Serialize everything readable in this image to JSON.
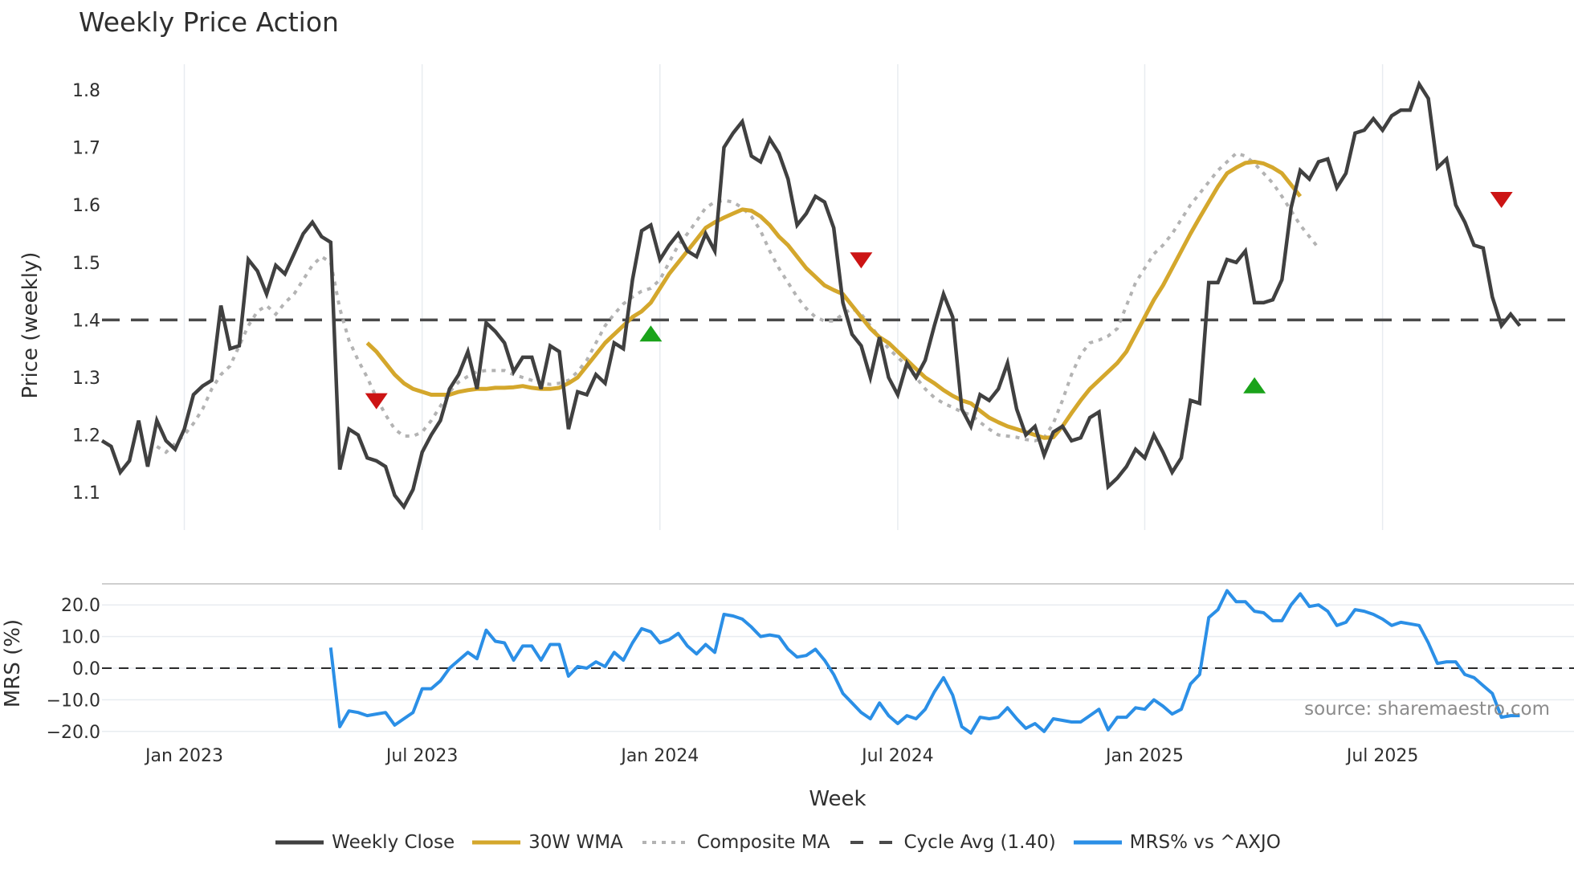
{
  "title": "Weekly Price Action",
  "source": "source: sharemaestro.com",
  "colors": {
    "weekly_close": "#404040",
    "wma": "#d4a72c",
    "composite": "#b3b3b3",
    "cycle_avg": "#4a4a4a",
    "mrs": "#2b8fe6",
    "buy": "#1aa31a",
    "sell": "#cc1414",
    "grid": "#e8ecf0"
  },
  "legend": [
    {
      "key": "weekly_close",
      "label": "Weekly Close",
      "style": "solid"
    },
    {
      "key": "wma",
      "label": "30W WMA",
      "style": "solid"
    },
    {
      "key": "composite",
      "label": "Composite MA",
      "style": "dotted"
    },
    {
      "key": "cycle_avg",
      "label": "Cycle Avg (1.40)",
      "style": "dashed"
    },
    {
      "key": "mrs",
      "label": "MRS% vs ^AXJO",
      "style": "solid"
    }
  ],
  "chart_data": [
    {
      "type": "line",
      "title": "Weekly Price Action",
      "xlabel": "",
      "ylabel": "Price (weekly)",
      "ylim": [
        1.03,
        1.85
      ],
      "yticks": [
        1.1,
        1.2,
        1.3,
        1.4,
        1.5,
        1.6,
        1.7,
        1.8
      ],
      "x_tick_labels": [
        "Jan 2023",
        "Jul 2023",
        "Jan 2024",
        "Jul 2024",
        "Jan 2025",
        "Jul 2025"
      ],
      "grid": "vertical",
      "reference_line": {
        "label": "Cycle Avg (1.40)",
        "value": 1.4
      },
      "series": [
        {
          "name": "Weekly Close",
          "start_week": "2022-10-31",
          "values": [
            1.19,
            1.18,
            1.135,
            1.155,
            1.225,
            1.145,
            1.225,
            1.19,
            1.175,
            1.21,
            1.27,
            1.285,
            1.295,
            1.425,
            1.35,
            1.355,
            1.505,
            1.485,
            1.445,
            1.495,
            1.48,
            1.515,
            1.55,
            1.57,
            1.545,
            1.535,
            1.14,
            1.21,
            1.2,
            1.16,
            1.155,
            1.145,
            1.095,
            1.075,
            1.105,
            1.17,
            1.2,
            1.225,
            1.28,
            1.305,
            1.345,
            1.28,
            1.395,
            1.38,
            1.36,
            1.31,
            1.335,
            1.335,
            1.28,
            1.355,
            1.345,
            1.21,
            1.275,
            1.27,
            1.305,
            1.29,
            1.36,
            1.35,
            1.47,
            1.555,
            1.565,
            1.505,
            1.53,
            1.55,
            1.52,
            1.51,
            1.55,
            1.52,
            1.7,
            1.725,
            1.745,
            1.685,
            1.675,
            1.715,
            1.69,
            1.645,
            1.565,
            1.585,
            1.615,
            1.605,
            1.56,
            1.43,
            1.375,
            1.355,
            1.3,
            1.37,
            1.3,
            1.27,
            1.325,
            1.3,
            1.33,
            1.39,
            1.445,
            1.405,
            1.245,
            1.215,
            1.27,
            1.26,
            1.28,
            1.325,
            1.245,
            1.2,
            1.215,
            1.165,
            1.205,
            1.215,
            1.19,
            1.195,
            1.23,
            1.24,
            1.11,
            1.125,
            1.145,
            1.175,
            1.16,
            1.2,
            1.17,
            1.135,
            1.16,
            1.26,
            1.255,
            1.465,
            1.465,
            1.505,
            1.5,
            1.52,
            1.43,
            1.43,
            1.435,
            1.47,
            1.595,
            1.66,
            1.645,
            1.675,
            1.68,
            1.63,
            1.655,
            1.725,
            1.73,
            1.75,
            1.73,
            1.755,
            1.765,
            1.765,
            1.81,
            1.785,
            1.665,
            1.68,
            1.6,
            1.57,
            1.53,
            1.525,
            1.44,
            1.39,
            1.41,
            1.39
          ]
        },
        {
          "name": "30W WMA",
          "start_week": "2023-05-22",
          "values": [
            1.36,
            1.345,
            1.325,
            1.305,
            1.29,
            1.28,
            1.275,
            1.27,
            1.27,
            1.27,
            1.275,
            1.278,
            1.28,
            1.28,
            1.282,
            1.282,
            1.283,
            1.285,
            1.282,
            1.28,
            1.28,
            1.282,
            1.29,
            1.3,
            1.32,
            1.34,
            1.36,
            1.375,
            1.39,
            1.405,
            1.415,
            1.43,
            1.455,
            1.48,
            1.5,
            1.52,
            1.54,
            1.56,
            1.57,
            1.578,
            1.585,
            1.592,
            1.59,
            1.58,
            1.565,
            1.545,
            1.53,
            1.51,
            1.49,
            1.475,
            1.46,
            1.452,
            1.445,
            1.425,
            1.405,
            1.385,
            1.37,
            1.36,
            1.345,
            1.33,
            1.315,
            1.3,
            1.29,
            1.278,
            1.268,
            1.26,
            1.255,
            1.242,
            1.23,
            1.222,
            1.215,
            1.21,
            1.205,
            1.2,
            1.195,
            1.196,
            1.215,
            1.238,
            1.26,
            1.28,
            1.295,
            1.31,
            1.325,
            1.345,
            1.375,
            1.405,
            1.435,
            1.46,
            1.49,
            1.52,
            1.55,
            1.578,
            1.605,
            1.632,
            1.655,
            1.665,
            1.673,
            1.675,
            1.672,
            1.665,
            1.655,
            1.635,
            1.615
          ]
        },
        {
          "name": "Composite MA",
          "start_week": "2022-12-12",
          "values": [
            1.18,
            1.17,
            1.185,
            1.2,
            1.22,
            1.245,
            1.28,
            1.305,
            1.32,
            1.355,
            1.39,
            1.415,
            1.425,
            1.41,
            1.43,
            1.445,
            1.47,
            1.495,
            1.51,
            1.5,
            1.42,
            1.365,
            1.33,
            1.3,
            1.265,
            1.235,
            1.21,
            1.198,
            1.198,
            1.205,
            1.225,
            1.25,
            1.275,
            1.292,
            1.302,
            1.31,
            1.312,
            1.312,
            1.312,
            1.305,
            1.3,
            1.295,
            1.29,
            1.288,
            1.29,
            1.295,
            1.31,
            1.33,
            1.36,
            1.39,
            1.41,
            1.428,
            1.44,
            1.45,
            1.455,
            1.47,
            1.5,
            1.53,
            1.55,
            1.572,
            1.595,
            1.605,
            1.608,
            1.605,
            1.595,
            1.58,
            1.555,
            1.52,
            1.49,
            1.465,
            1.44,
            1.42,
            1.405,
            1.398,
            1.398,
            1.41,
            1.42,
            1.41,
            1.39,
            1.37,
            1.35,
            1.335,
            1.32,
            1.3,
            1.28,
            1.265,
            1.255,
            1.248,
            1.24,
            1.235,
            1.222,
            1.21,
            1.2,
            1.198,
            1.196,
            1.192,
            1.19,
            1.195,
            1.22,
            1.26,
            1.305,
            1.34,
            1.36,
            1.365,
            1.372,
            1.385,
            1.425,
            1.465,
            1.49,
            1.515,
            1.53,
            1.55,
            1.575,
            1.6,
            1.62,
            1.64,
            1.66,
            1.675,
            1.69,
            1.685,
            1.672,
            1.655,
            1.638,
            1.615,
            1.59,
            1.565,
            1.545,
            1.525
          ]
        },
        {
          "name": "Cycle Avg (1.40)",
          "values": [
            1.4
          ]
        }
      ],
      "markers": [
        {
          "type": "sell",
          "shape": "triangle-down",
          "week": "2023-05-29",
          "value": 1.26
        },
        {
          "type": "buy",
          "shape": "triangle-up",
          "week": "2023-12-25",
          "value": 1.375
        },
        {
          "type": "sell",
          "shape": "triangle-down",
          "week": "2024-06-03",
          "value": 1.505
        },
        {
          "type": "buy",
          "shape": "triangle-up",
          "week": "2025-03-31",
          "value": 1.285
        },
        {
          "type": "sell",
          "shape": "triangle-down",
          "week": "2025-10-06",
          "value": 1.61
        }
      ]
    },
    {
      "type": "line",
      "title": "",
      "xlabel": "Week",
      "ylabel": "MRS (%)",
      "ylim": [
        -22,
        26
      ],
      "yticks": [
        -20.0,
        -10.0,
        0.0,
        10.0,
        20.0
      ],
      "x_tick_labels": [
        "Jan 2023",
        "Jul 2023",
        "Jan 2024",
        "Jul 2024",
        "Jan 2025",
        "Jul 2025"
      ],
      "grid": "horizontal",
      "reference_line": {
        "value": 0.0
      },
      "annotation": "source: sharemaestro.com",
      "series": [
        {
          "name": "MRS% vs ^AXJO",
          "start_week": "2023-04-24",
          "values": [
            6.5,
            -18.5,
            -13.5,
            -14,
            -15,
            -14.5,
            -14,
            -18,
            -16,
            -14,
            -6.5,
            -6.5,
            -4,
            0,
            2.5,
            5,
            3,
            12,
            8.5,
            8,
            2.5,
            7,
            7,
            2.5,
            7.5,
            7.5,
            -2.5,
            0.5,
            0,
            2,
            0.5,
            5,
            2.5,
            8,
            12.5,
            11.5,
            8,
            9,
            11,
            7,
            4.5,
            7.5,
            5,
            17,
            16.5,
            15.5,
            13,
            10,
            10.5,
            10,
            6,
            3.5,
            4,
            6,
            2.5,
            -2,
            -8,
            -11,
            -14,
            -16,
            -11,
            -15,
            -17.5,
            -15,
            -16,
            -13,
            -7.5,
            -3,
            -8.5,
            -18.5,
            -20.5,
            -15.5,
            -16,
            -15.5,
            -12.5,
            -16,
            -19,
            -17.5,
            -20,
            -16,
            -16.5,
            -17,
            -17,
            -15,
            -13,
            -19.5,
            -15.5,
            -15.5,
            -12.5,
            -13,
            -10,
            -12,
            -14.5,
            -13,
            -5,
            -2,
            16,
            18.5,
            24.5,
            21,
            21,
            18,
            17.5,
            15,
            15,
            20,
            23.5,
            19.5,
            20,
            18,
            13.5,
            14.5,
            18.5,
            18,
            17,
            15.5,
            13.5,
            14.5,
            14,
            13.5,
            8,
            1.5,
            2,
            2,
            -2,
            -3,
            -5.5,
            -8,
            -15.5,
            -15,
            -15
          ]
        }
      ]
    }
  ],
  "axes": {
    "price_ylabel": "Price (weekly)",
    "mrs_ylabel": "MRS (%)",
    "xlabel": "Week",
    "price_ticks": [
      "1.8",
      "1.7",
      "1.6",
      "1.5",
      "1.4",
      "1.3",
      "1.2",
      "1.1"
    ],
    "mrs_ticks": [
      "20.0",
      "10.0",
      "0.0",
      "−10.0",
      "−20.0"
    ],
    "x_ticks": [
      "Jan 2023",
      "Jul 2023",
      "Jan 2024",
      "Jul 2024",
      "Jan 2025",
      "Jul 2025"
    ]
  }
}
